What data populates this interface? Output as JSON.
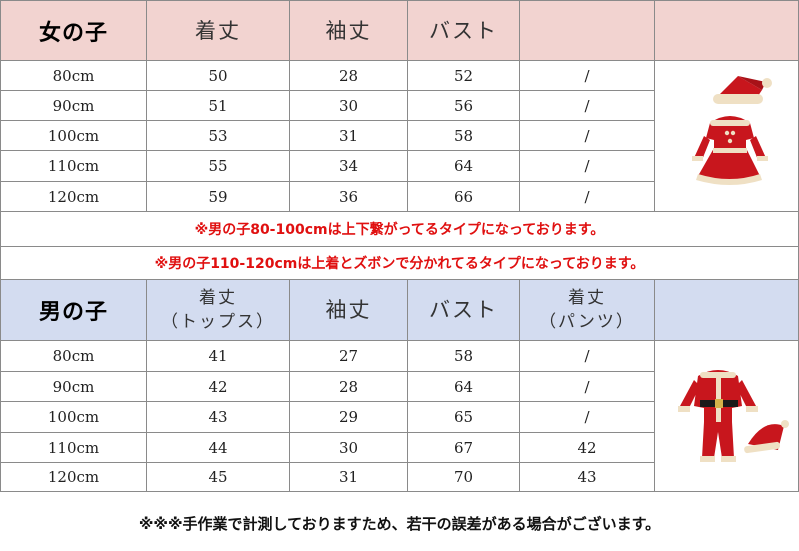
{
  "girls": {
    "title": "女の子",
    "headers": [
      "着丈",
      "袖丈",
      "バスト"
    ],
    "rows": [
      {
        "size": "80cm",
        "length": "50",
        "sleeve": "28",
        "bust": "52",
        "extra": "/"
      },
      {
        "size": "90cm",
        "length": "51",
        "sleeve": "30",
        "bust": "56",
        "extra": "/"
      },
      {
        "size": "100cm",
        "length": "53",
        "sleeve": "31",
        "bust": "58",
        "extra": "/"
      },
      {
        "size": "110cm",
        "length": "55",
        "sleeve": "34",
        "bust": "64",
        "extra": "/"
      },
      {
        "size": "120cm",
        "length": "59",
        "sleeve": "36",
        "bust": "66",
        "extra": "/"
      }
    ],
    "image_icon": "santa-girl-dress-icon"
  },
  "notes": [
    "※男の子80-100cmは上下繋がってるタイプになっております。",
    "※男の子110-120cmは上着とズボンで分かれてるタイプになっております。"
  ],
  "boys": {
    "title": "男の子",
    "headers": {
      "top_line1": "着丈",
      "top_line2": "（トップス）",
      "sleeve": "袖丈",
      "bust": "バスト",
      "pants_line1": "着丈",
      "pants_line2": "（パンツ）"
    },
    "rows": [
      {
        "size": "80cm",
        "length": "41",
        "sleeve": "27",
        "bust": "58",
        "pants": "/"
      },
      {
        "size": "90cm",
        "length": "42",
        "sleeve": "28",
        "bust": "64",
        "pants": "/"
      },
      {
        "size": "100cm",
        "length": "43",
        "sleeve": "29",
        "bust": "65",
        "pants": "/"
      },
      {
        "size": "110cm",
        "length": "44",
        "sleeve": "30",
        "bust": "67",
        "pants": "42"
      },
      {
        "size": "120cm",
        "length": "45",
        "sleeve": "31",
        "bust": "70",
        "pants": "43"
      }
    ],
    "image_icon": "santa-boy-suit-icon"
  },
  "footnote": "※※※手作業で計測しておりますため、若干の誤差がある場合がございます。",
  "colors": {
    "girl_header_bg": "#f2d3d0",
    "boy_header_bg": "#d3dcf0",
    "note_red": "#e01010",
    "grid_line": "#8a8a8a"
  }
}
